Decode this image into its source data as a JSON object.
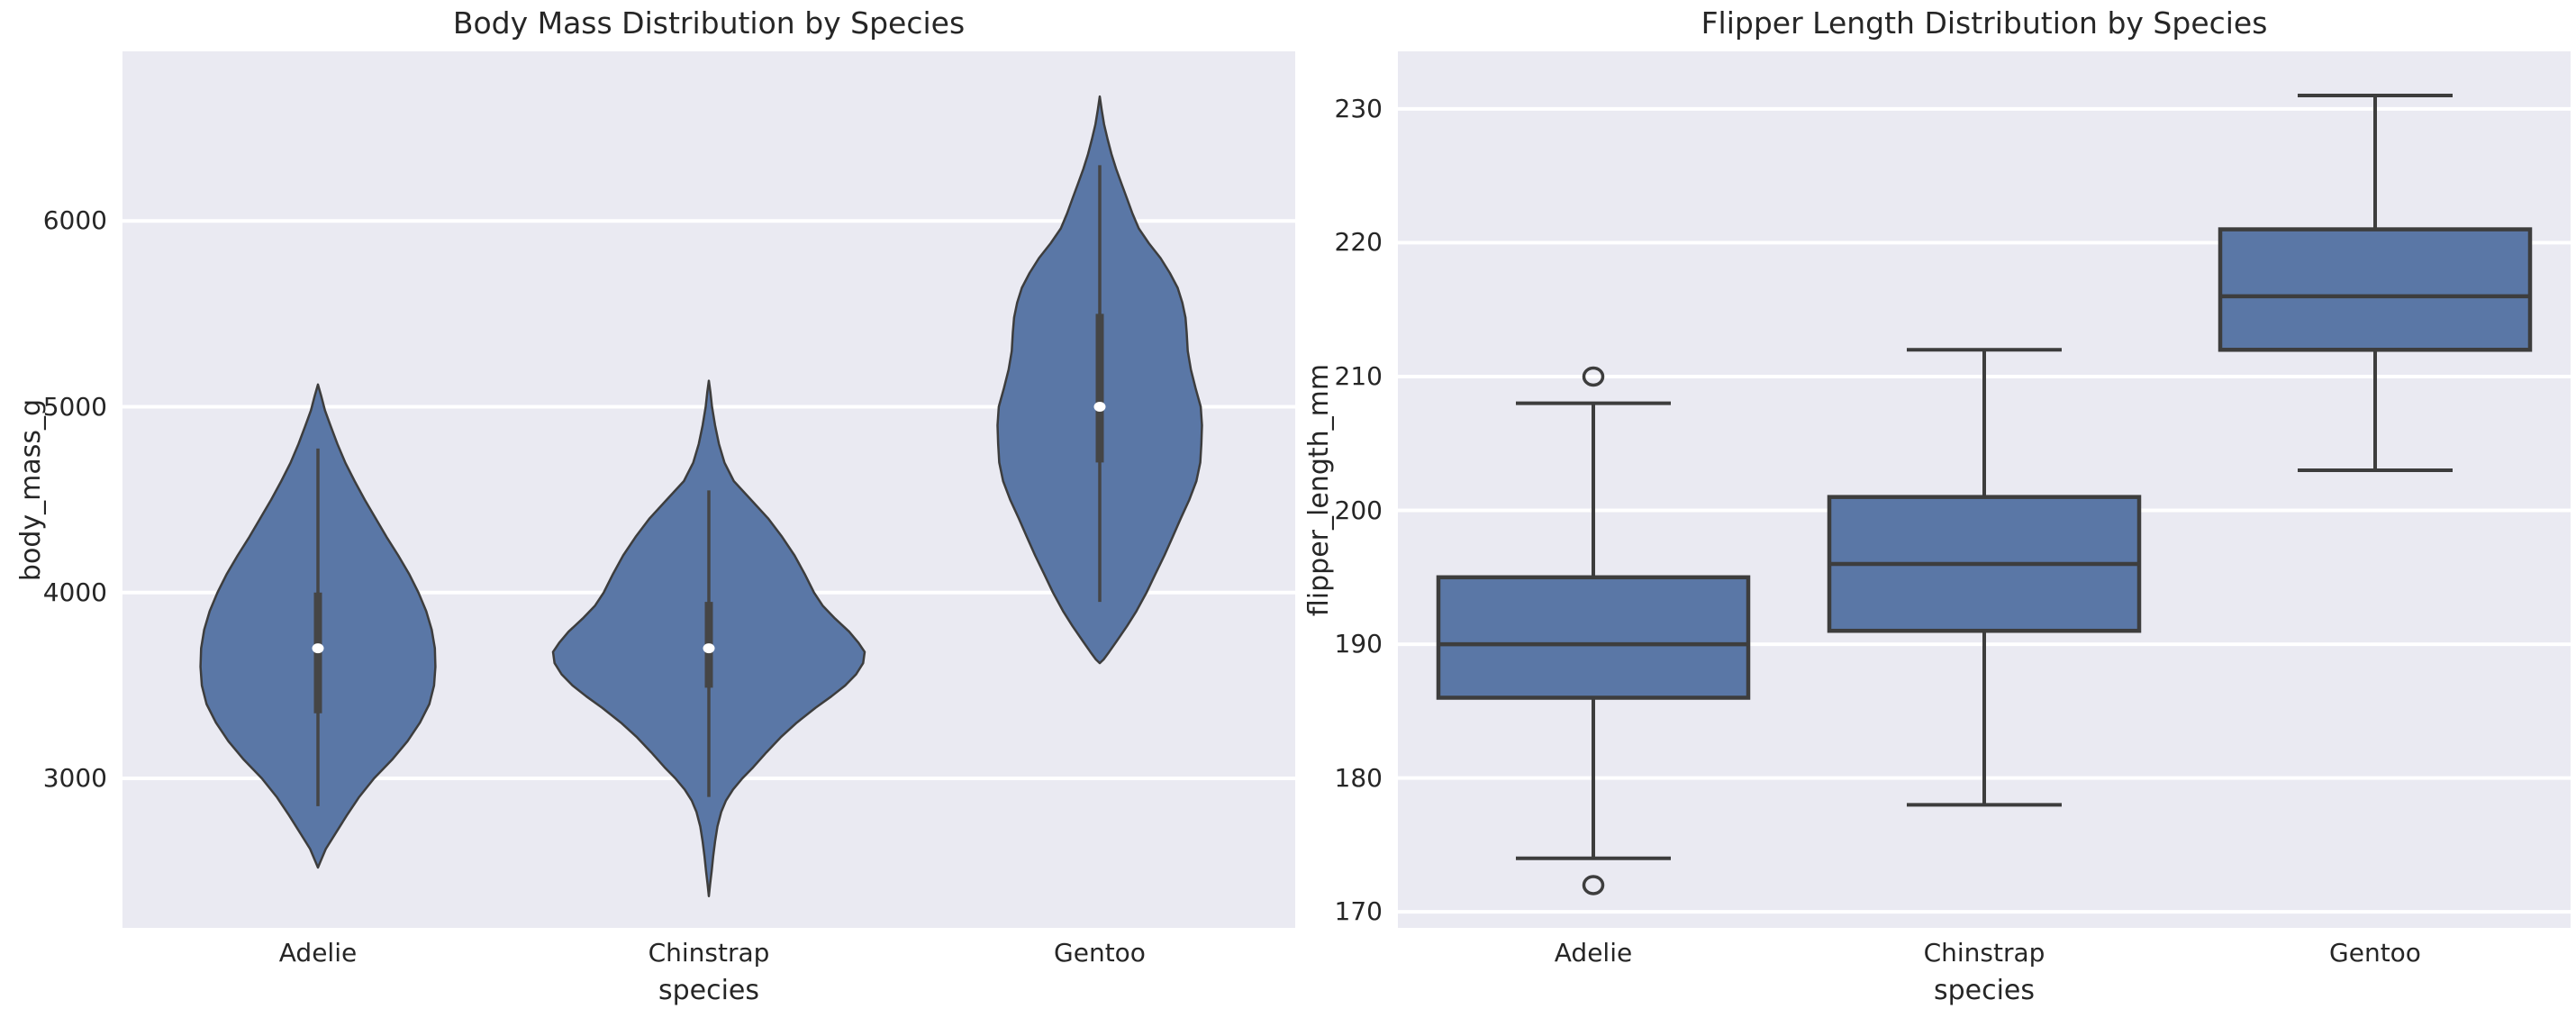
{
  "colors": {
    "fill": "#5a77a6",
    "edge": "#3d3d3d",
    "inner": "#454545",
    "grid": "#ffffff",
    "axes_bg": "#eaeaf2",
    "text": "#262626",
    "median_dot": "#ffffff"
  },
  "chart_data": [
    {
      "type": "violin",
      "title": "Body Mass Distribution by Species",
      "xlabel": "species",
      "ylabel": "body_mass_g",
      "categories": [
        "Adelie",
        "Chinstrap",
        "Gentoo"
      ],
      "yticks": [
        3000,
        4000,
        5000,
        6000
      ],
      "ylim": [
        2195,
        6913
      ],
      "grid": true,
      "legend": null,
      "violins": [
        {
          "species": "Adelie",
          "summary": {
            "whisker_low": 2850,
            "q1": 3350,
            "median": 3700,
            "q3": 4000,
            "whisker_high": 4775
          },
          "profile": [
            [
              5120,
              0.0
            ],
            [
              5060,
              0.02
            ],
            [
              4980,
              0.045
            ],
            [
              4900,
              0.08
            ],
            [
              4800,
              0.125
            ],
            [
              4700,
              0.175
            ],
            [
              4600,
              0.235
            ],
            [
              4500,
              0.3
            ],
            [
              4400,
              0.37
            ],
            [
              4300,
              0.44
            ],
            [
              4200,
              0.515
            ],
            [
              4100,
              0.585
            ],
            [
              4000,
              0.645
            ],
            [
              3900,
              0.695
            ],
            [
              3800,
              0.73
            ],
            [
              3700,
              0.75
            ],
            [
              3600,
              0.754
            ],
            [
              3500,
              0.745
            ],
            [
              3400,
              0.715
            ],
            [
              3300,
              0.655
            ],
            [
              3200,
              0.575
            ],
            [
              3100,
              0.475
            ],
            [
              3000,
              0.36
            ],
            [
              2900,
              0.265
            ],
            [
              2800,
              0.185
            ],
            [
              2700,
              0.11
            ],
            [
              2620,
              0.05
            ],
            [
              2560,
              0.02
            ],
            [
              2520,
              0.0
            ]
          ]
        },
        {
          "species": "Chinstrap",
          "summary": {
            "whisker_low": 2900,
            "q1": 3488,
            "median": 3700,
            "q3": 3950,
            "whisker_high": 4550
          },
          "profile": [
            [
              5140,
              0.0
            ],
            [
              5080,
              0.01
            ],
            [
              5000,
              0.02
            ],
            [
              4900,
              0.04
            ],
            [
              4800,
              0.065
            ],
            [
              4700,
              0.1
            ],
            [
              4600,
              0.16
            ],
            [
              4500,
              0.27
            ],
            [
              4400,
              0.38
            ],
            [
              4300,
              0.47
            ],
            [
              4200,
              0.55
            ],
            [
              4100,
              0.615
            ],
            [
              4000,
              0.675
            ],
            [
              3930,
              0.73
            ],
            [
              3860,
              0.81
            ],
            [
              3790,
              0.9
            ],
            [
              3730,
              0.96
            ],
            [
              3680,
              1.0
            ],
            [
              3620,
              0.99
            ],
            [
              3560,
              0.945
            ],
            [
              3500,
              0.875
            ],
            [
              3440,
              0.785
            ],
            [
              3380,
              0.685
            ],
            [
              3300,
              0.565
            ],
            [
              3220,
              0.46
            ],
            [
              3140,
              0.37
            ],
            [
              3060,
              0.285
            ],
            [
              3000,
              0.215
            ],
            [
              2940,
              0.155
            ],
            [
              2880,
              0.11
            ],
            [
              2820,
              0.08
            ],
            [
              2740,
              0.055
            ],
            [
              2660,
              0.04
            ],
            [
              2580,
              0.028
            ],
            [
              2500,
              0.018
            ],
            [
              2430,
              0.008
            ],
            [
              2366,
              0.0
            ]
          ]
        },
        {
          "species": "Gentoo",
          "summary": {
            "whisker_low": 3950,
            "q1": 4700,
            "median": 5000,
            "q3": 5500,
            "whisker_high": 6300
          },
          "profile": [
            [
              6670,
              0.0
            ],
            [
              6600,
              0.012
            ],
            [
              6520,
              0.028
            ],
            [
              6440,
              0.05
            ],
            [
              6360,
              0.075
            ],
            [
              6280,
              0.105
            ],
            [
              6200,
              0.14
            ],
            [
              6120,
              0.175
            ],
            [
              6040,
              0.21
            ],
            [
              5960,
              0.25
            ],
            [
              5880,
              0.315
            ],
            [
              5800,
              0.39
            ],
            [
              5720,
              0.45
            ],
            [
              5640,
              0.5
            ],
            [
              5560,
              0.53
            ],
            [
              5480,
              0.55
            ],
            [
              5400,
              0.558
            ],
            [
              5300,
              0.565
            ],
            [
              5200,
              0.585
            ],
            [
              5100,
              0.615
            ],
            [
              5000,
              0.648
            ],
            [
              4900,
              0.656
            ],
            [
              4800,
              0.652
            ],
            [
              4700,
              0.645
            ],
            [
              4600,
              0.62
            ],
            [
              4500,
              0.575
            ],
            [
              4400,
              0.52
            ],
            [
              4300,
              0.468
            ],
            [
              4200,
              0.415
            ],
            [
              4100,
              0.357
            ],
            [
              4000,
              0.3
            ],
            [
              3900,
              0.235
            ],
            [
              3820,
              0.175
            ],
            [
              3740,
              0.11
            ],
            [
              3680,
              0.06
            ],
            [
              3640,
              0.025
            ],
            [
              3620,
              0.0
            ]
          ]
        }
      ]
    },
    {
      "type": "box",
      "title": "Flipper Length Distribution by Species",
      "xlabel": "species",
      "ylabel": "flipper_length_mm",
      "categories": [
        "Adelie",
        "Chinstrap",
        "Gentoo"
      ],
      "yticks": [
        170,
        180,
        190,
        200,
        210,
        220,
        230
      ],
      "ylim": [
        168.8,
        234.3
      ],
      "grid": true,
      "legend": null,
      "boxes": [
        {
          "species": "Adelie",
          "whisker_low": 174,
          "q1": 186,
          "median": 190,
          "q3": 195,
          "whisker_high": 208,
          "outliers": [
            210,
            172
          ]
        },
        {
          "species": "Chinstrap",
          "whisker_low": 178,
          "q1": 191,
          "median": 196,
          "q3": 201,
          "whisker_high": 212,
          "outliers": []
        },
        {
          "species": "Gentoo",
          "whisker_low": 203,
          "q1": 212,
          "median": 216,
          "q3": 221,
          "whisker_high": 231,
          "outliers": []
        }
      ]
    }
  ]
}
